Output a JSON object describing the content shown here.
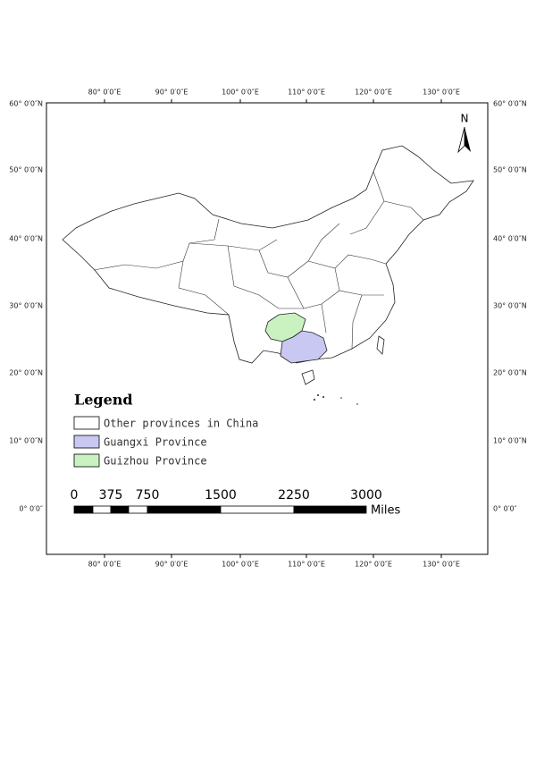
{
  "graticule": {
    "longitude_labels": [
      "80° 0′0″E",
      "90° 0′0″E",
      "100° 0′0″E",
      "110° 0′0″E",
      "120° 0′0″E",
      "130° 0′0″E"
    ],
    "latitude_labels": [
      "60° 0′0″N",
      "50° 0′0″N",
      "40° 0′0″N",
      "30° 0′0″N",
      "20° 0′0″N",
      "10° 0′0″N",
      "0° 0′0″"
    ]
  },
  "north_arrow": "N",
  "legend": {
    "title": "Legend",
    "items": [
      "Other provinces in China",
      "Guangxi Province",
      "Guizhou Province"
    ]
  },
  "scale_bar": {
    "labels": [
      "0",
      "375",
      "750",
      "1500",
      "2250",
      "3000"
    ],
    "unit": "Miles"
  }
}
